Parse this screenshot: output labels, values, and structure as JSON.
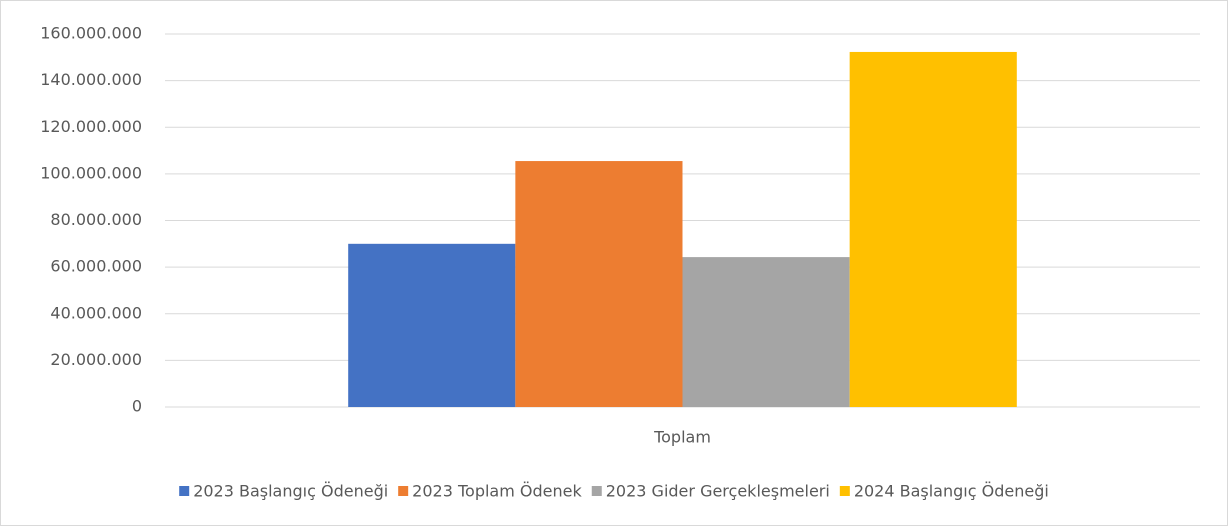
{
  "chart_data": {
    "type": "bar",
    "categories": [
      "Toplam"
    ],
    "series": [
      {
        "name": "2023 Başlangıç Ödeneği",
        "color": "#4472c4",
        "values": [
          70000000
        ]
      },
      {
        "name": "2023 Toplam Ödenek",
        "color": "#ed7d31",
        "values": [
          105500000
        ]
      },
      {
        "name": "2023 Gider Gerçekleşmeleri",
        "color": "#a5a5a5",
        "values": [
          64300000
        ]
      },
      {
        "name": "2024 Başlangıç Ödeneği",
        "color": "#ffc000",
        "values": [
          152300000
        ]
      }
    ],
    "ylim": [
      0,
      160000000
    ],
    "yticks": [
      0,
      {
        "value": 20000000,
        "label": "20.000.000"
      },
      {
        "value": 40000000,
        "label": "40.000.000"
      },
      {
        "value": 60000000,
        "label": "60.000.000"
      },
      {
        "value": 80000000,
        "label": "80.000.000"
      },
      {
        "value": 100000000,
        "label": "100.000.000"
      },
      {
        "value": 120000000,
        "label": "120.000.000"
      },
      {
        "value": 140000000,
        "label": "140.000.000"
      },
      {
        "value": 160000000,
        "label": "160.000.000"
      }
    ],
    "grid": true,
    "legend": "bottom"
  }
}
